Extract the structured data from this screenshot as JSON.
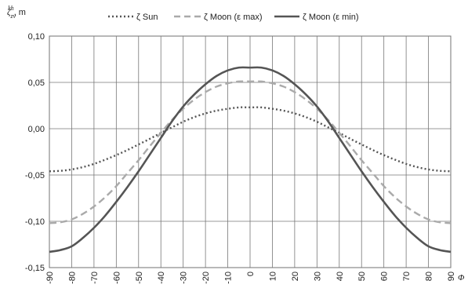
{
  "chart_data": {
    "type": "line",
    "title": "",
    "ylabel": "ζ",
    "ylabel_superscript": "kh",
    "ylabel_subscript": "zv",
    "ylabel_unit": ", m",
    "xlabel": "Φ",
    "xlim": [
      -90,
      90
    ],
    "ylim": [
      -0.15,
      0.1
    ],
    "grid": true,
    "legend_position": "top",
    "x_ticks": [
      "-90",
      "-80",
      "-70",
      "-60",
      "-50",
      "-40",
      "-30",
      "-20",
      "-10",
      "0",
      "10",
      "20",
      "30",
      "40",
      "50",
      "60",
      "70",
      "80",
      "90"
    ],
    "y_ticks": [
      "0,10",
      "0,05",
      "0,00",
      "-0,05",
      "-0,10",
      "-0,15"
    ],
    "x": [
      -90,
      -85,
      -80,
      -75,
      -70,
      -65,
      -60,
      -55,
      -50,
      -45,
      -40,
      -35,
      -30,
      -25,
      -20,
      -15,
      -10,
      -5,
      0,
      5,
      10,
      15,
      20,
      25,
      30,
      35,
      40,
      45,
      50,
      55,
      60,
      65,
      70,
      75,
      80,
      85,
      90
    ],
    "series": [
      {
        "name": "ζ Sun",
        "color": "#555555",
        "style": "dotted",
        "values": [
          -0.046,
          -0.0455,
          -0.044,
          -0.0415,
          -0.038,
          -0.0335,
          -0.0285,
          -0.023,
          -0.017,
          -0.011,
          -0.0045,
          0.0015,
          0.0075,
          0.0125,
          0.0165,
          0.0195,
          0.0215,
          0.023,
          0.023,
          0.023,
          0.0215,
          0.0195,
          0.0165,
          0.0125,
          0.0075,
          0.0015,
          -0.0045,
          -0.011,
          -0.017,
          -0.023,
          -0.0285,
          -0.0335,
          -0.038,
          -0.0415,
          -0.044,
          -0.0455,
          -0.046
        ]
      },
      {
        "name": "ζ Moon (ε max)",
        "color": "#aaaaaa",
        "style": "dashed",
        "values": [
          -0.102,
          -0.101,
          -0.098,
          -0.092,
          -0.084,
          -0.074,
          -0.062,
          -0.048,
          -0.034,
          -0.019,
          -0.0045,
          0.0095,
          0.0215,
          0.0315,
          0.0395,
          0.0455,
          0.049,
          0.051,
          0.051,
          0.051,
          0.049,
          0.0455,
          0.0395,
          0.0315,
          0.0215,
          0.0095,
          -0.0045,
          -0.019,
          -0.034,
          -0.048,
          -0.062,
          -0.074,
          -0.084,
          -0.092,
          -0.098,
          -0.101,
          -0.102
        ]
      },
      {
        "name": "ζ Moon (ε min)",
        "color": "#555555",
        "style": "solid",
        "values": [
          -0.133,
          -0.131,
          -0.127,
          -0.118,
          -0.107,
          -0.094,
          -0.079,
          -0.063,
          -0.046,
          -0.028,
          -0.01,
          0.008,
          0.024,
          0.037,
          0.048,
          0.057,
          0.063,
          0.066,
          0.066,
          0.066,
          0.063,
          0.057,
          0.048,
          0.037,
          0.024,
          0.008,
          -0.01,
          -0.028,
          -0.046,
          -0.063,
          -0.079,
          -0.094,
          -0.107,
          -0.118,
          -0.127,
          -0.131,
          -0.133
        ]
      }
    ]
  }
}
